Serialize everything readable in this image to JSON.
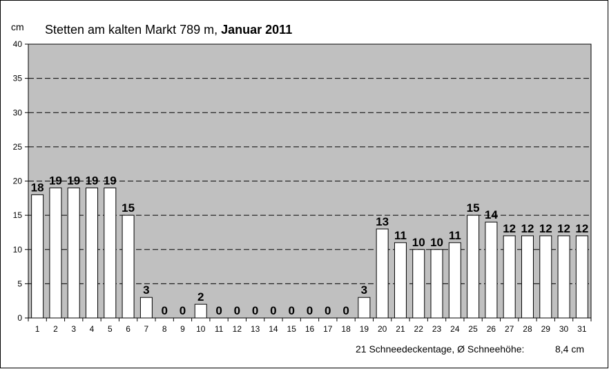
{
  "chart_data": {
    "type": "bar",
    "title_normal": "Stetten am kalten Markt 789 m, ",
    "title_bold": "Januar 2011",
    "ylabel": "cm",
    "xlabel": "",
    "ylim": [
      0,
      40
    ],
    "yticks": [
      0,
      5,
      10,
      15,
      20,
      25,
      30,
      35,
      40
    ],
    "grid": true,
    "legend": "none",
    "categories": [
      "1",
      "2",
      "3",
      "4",
      "5",
      "6",
      "7",
      "8",
      "9",
      "10",
      "11",
      "12",
      "13",
      "14",
      "15",
      "16",
      "17",
      "18",
      "19",
      "20",
      "21",
      "22",
      "23",
      "24",
      "25",
      "26",
      "27",
      "28",
      "29",
      "30",
      "31"
    ],
    "values": [
      18,
      19,
      19,
      19,
      19,
      15,
      3,
      0,
      0,
      2,
      0,
      0,
      0,
      0,
      0,
      0,
      0,
      0,
      3,
      13,
      11,
      10,
      10,
      11,
      15,
      14,
      12,
      12,
      12,
      12,
      12
    ],
    "footnote_label": "21 Schneedeckentage,  Ø Schneehöhe:",
    "footnote_value": "8,4 cm",
    "colors": {
      "plot_bg": "#c0c0c0",
      "bar_fill": "#ffffff",
      "bar_stroke": "#000000",
      "grid": "#000000"
    }
  }
}
